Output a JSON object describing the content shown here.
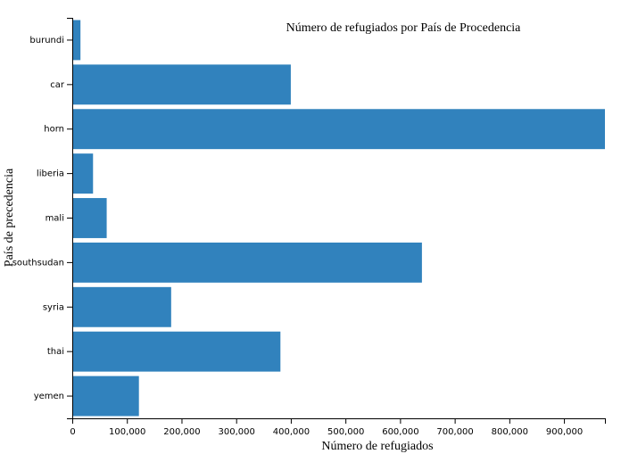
{
  "chart_data": {
    "type": "bar",
    "orientation": "horizontal",
    "title": "Número de refugiados por País de Procedencia",
    "xlabel": "Número de refugiados",
    "ylabel": "País de precedencia",
    "categories": [
      "burundi",
      "car",
      "horn",
      "liberia",
      "mali",
      "southsudan",
      "syria",
      "thai",
      "yemen"
    ],
    "values": [
      15000,
      400000,
      975000,
      38000,
      63000,
      640000,
      181000,
      381000,
      122000
    ],
    "xlim": [
      0,
      975000
    ],
    "x_ticks": [
      0,
      100000,
      200000,
      300000,
      400000,
      500000,
      600000,
      700000,
      800000,
      900000
    ],
    "x_tick_labels": [
      "0",
      "100,000",
      "200,000",
      "300,000",
      "400,000",
      "500,000",
      "600,000",
      "700,000",
      "800,000",
      "900,000"
    ],
    "bar_color": "#3182bd",
    "grid": false,
    "legend": "none"
  }
}
